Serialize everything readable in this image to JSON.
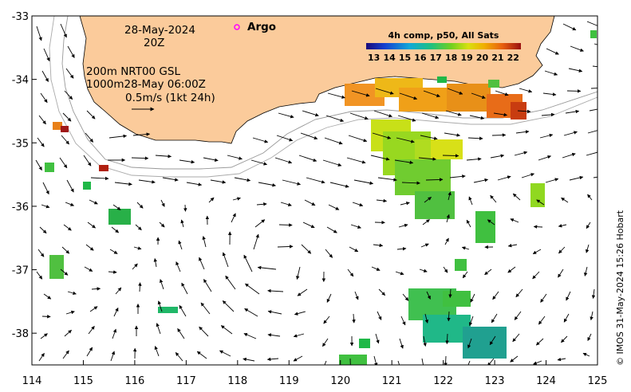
{
  "map": {
    "date": "28-May-2024",
    "hour": "20Z",
    "depth_line1": "200m  NRT00 GSL",
    "depth_line2": "1000m28-May 06:00Z",
    "arrow_scale": "0.5m/s (1kt 24h)",
    "argo_label": "Argo",
    "credit": "© IMOS 31-May-2024 15:26 Hobart",
    "colorbar": {
      "title": "4h comp, p50, All Sats",
      "ticks": [
        "13",
        "14",
        "15",
        "16",
        "17",
        "18",
        "19",
        "20",
        "21",
        "22"
      ],
      "min": 12.5,
      "max": 22.5
    },
    "xaxis": {
      "min": 114,
      "max": 125,
      "ticks": [
        "114",
        "115",
        "116",
        "117",
        "118",
        "119",
        "120",
        "121",
        "122",
        "123",
        "124",
        "125"
      ]
    },
    "yaxis": {
      "min": -38.5,
      "max": -33,
      "ticks": [
        "-33",
        "-34",
        "-35",
        "-36",
        "-37",
        "-38"
      ]
    },
    "colors": {
      "land": "#fbcb9b",
      "ocean": "#ffffff",
      "argo": "#ff00ff"
    }
  }
}
